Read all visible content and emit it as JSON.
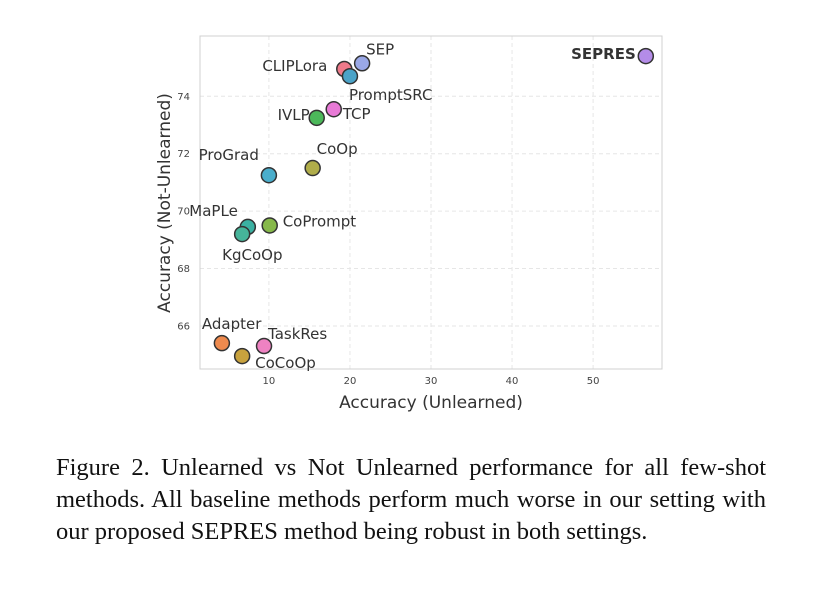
{
  "chart_data": {
    "type": "scatter",
    "xlabel": "Accuracy (Unlearned)",
    "ylabel": "Accuracy (Not-Unlearned)",
    "xlim": [
      1.5,
      58.5
    ],
    "ylim": [
      64.5,
      76.1
    ],
    "xticks": [
      10,
      20,
      30,
      40,
      50
    ],
    "yticks": [
      66,
      68,
      70,
      72,
      74
    ],
    "grid": true,
    "points": [
      {
        "label": "SEPRES",
        "x": 56.5,
        "y": 75.4,
        "color": "#b48ce8",
        "bold": true
      },
      {
        "label": "SEP",
        "x": 21.5,
        "y": 75.15,
        "color": "#9aa8e6"
      },
      {
        "label": "CLIPLora",
        "x": 19.3,
        "y": 74.95,
        "color": "#ee7a8a"
      },
      {
        "label": "PromptSRC",
        "x": 20.0,
        "y": 74.7,
        "color": "#4aa3c8"
      },
      {
        "label": "IVLP",
        "x": 15.9,
        "y": 73.25,
        "color": "#4cb85a"
      },
      {
        "label": "TCP",
        "x": 18.0,
        "y": 73.55,
        "color": "#e87ad6"
      },
      {
        "label": "ProGrad",
        "x": 10.0,
        "y": 71.25,
        "color": "#4aaecc"
      },
      {
        "label": "CoOp",
        "x": 15.4,
        "y": 71.5,
        "color": "#b0ad4a"
      },
      {
        "label": "MaPLe",
        "x": 7.4,
        "y": 69.45,
        "color": "#3bb1a2"
      },
      {
        "label": "CoPrompt",
        "x": 10.1,
        "y": 69.5,
        "color": "#86b84a"
      },
      {
        "label": "KgCoOp",
        "x": 6.7,
        "y": 69.2,
        "color": "#46b49a"
      },
      {
        "label": "Adapter",
        "x": 4.2,
        "y": 65.4,
        "color": "#ee8a4e"
      },
      {
        "label": "TaskRes",
        "x": 9.4,
        "y": 65.3,
        "color": "#ee82c2"
      },
      {
        "label": "CoCoOp",
        "x": 6.7,
        "y": 64.95,
        "color": "#c8a23e"
      }
    ]
  },
  "caption": "Figure 2.  Unlearned vs Not Unlearned performance for all few-shot methods.  All baseline methods perform much worse in our setting with our proposed SEPRES method being robust in both settings."
}
